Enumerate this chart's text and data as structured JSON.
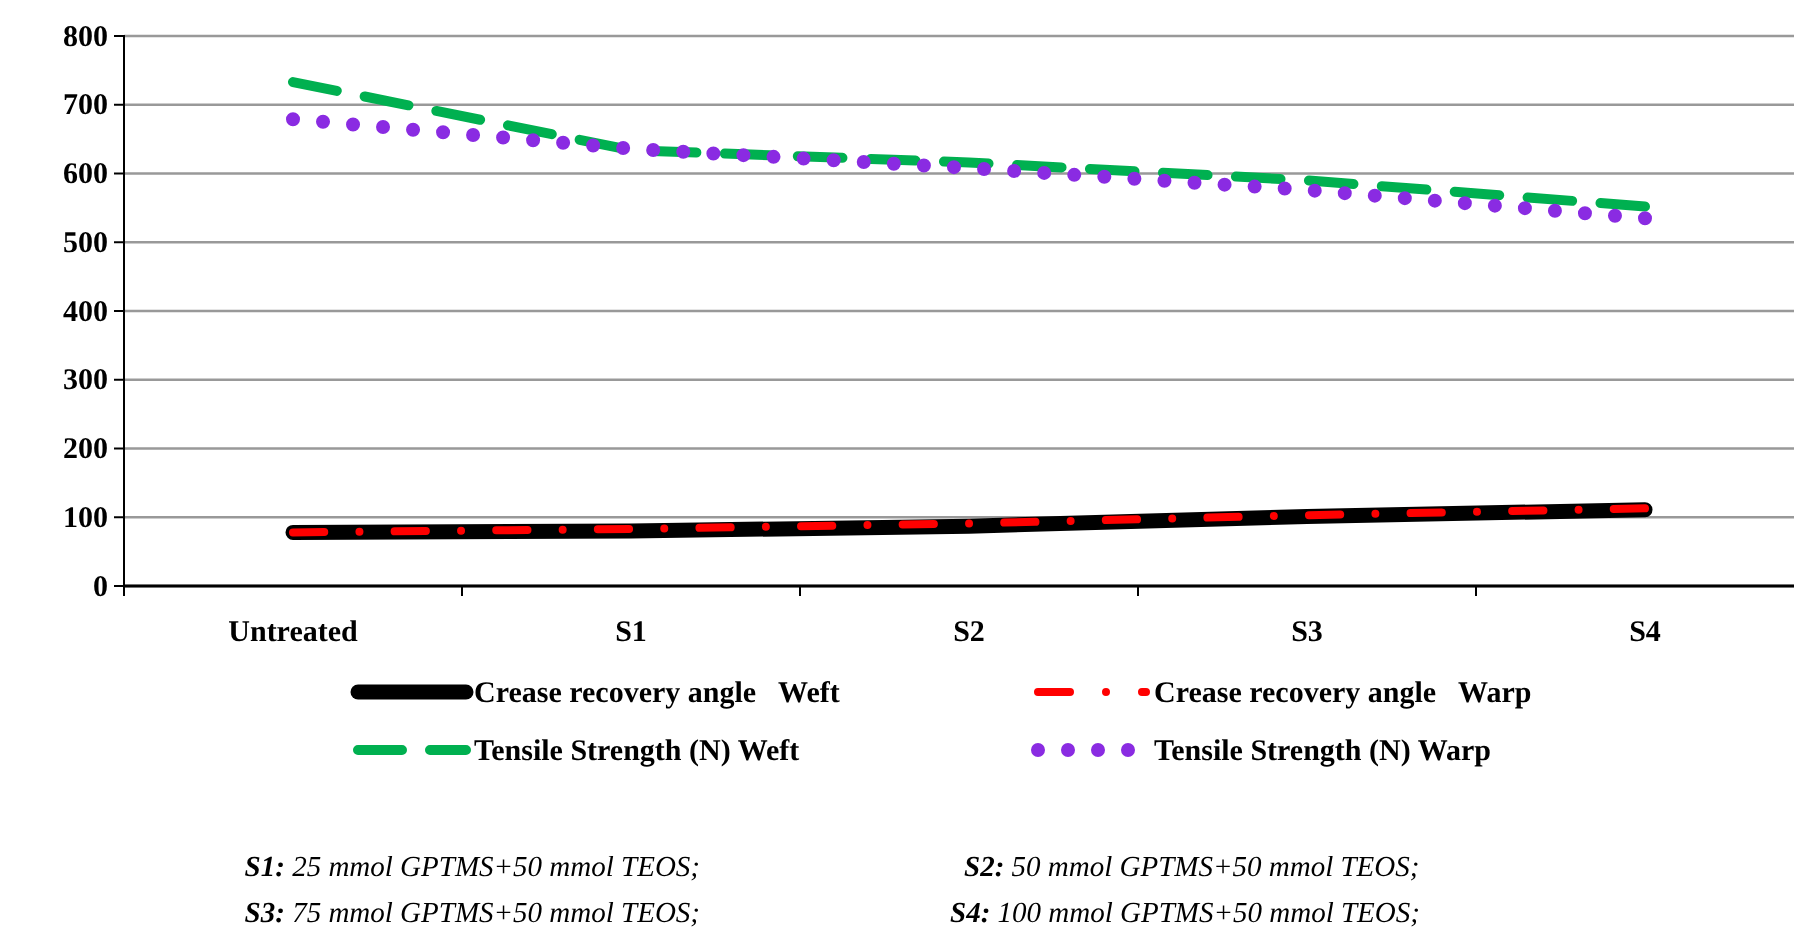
{
  "chart_data": {
    "type": "line",
    "categories": [
      "Untreated",
      "S1",
      "S2",
      "S3",
      "S4"
    ],
    "series": [
      {
        "name": "Crease recovery angle   Weft",
        "color": "#000000",
        "line_style": "solid",
        "values": [
          78,
          80,
          87,
          101,
          111
        ]
      },
      {
        "name": "Crease recovery angle   Warp",
        "color": "#ff0000",
        "line_style": "dashdot",
        "values": [
          78,
          83,
          91,
          103,
          113
        ]
      },
      {
        "name": "Tensile Strength (N) Weft",
        "color": "#00b050",
        "line_style": "dashed",
        "values": [
          733,
          634,
          616,
          590,
          552
        ]
      },
      {
        "name": "Tensile Strength (N) Warp",
        "color": "#8a2be2",
        "line_style": "dotted",
        "values": [
          679,
          636,
          608,
          576,
          535
        ]
      }
    ],
    "ylim": [
      0,
      800
    ],
    "yticks": [
      0,
      100,
      200,
      300,
      400,
      500,
      600,
      700,
      800
    ],
    "grid": "y",
    "legend": "bottom",
    "marker": "none",
    "annotations": [
      "S1: 25 mmol GPTMS+50 mmol TEOS;",
      "S2: 50 mmol GPTMS+50 mmol TEOS;",
      "S3: 75 mmol GPTMS+50 mmol TEOS;",
      "S4: 100 mmol GPTMS+50 mmol TEOS;"
    ]
  }
}
